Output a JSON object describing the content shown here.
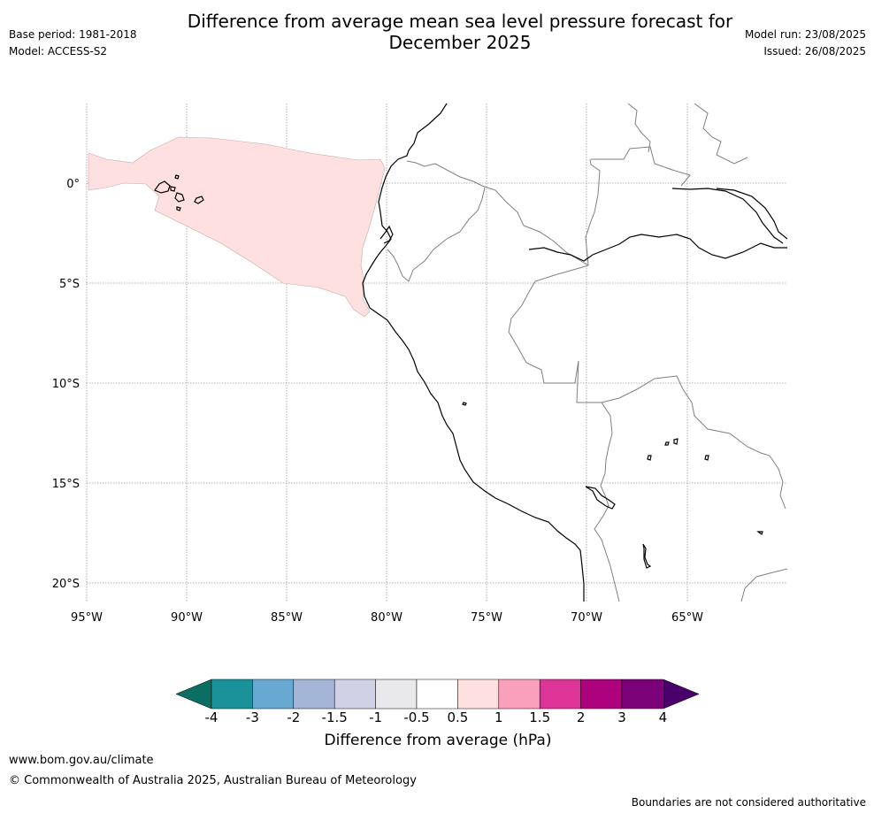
{
  "header": {
    "title_line1": "Difference from average mean sea level pressure forecast for",
    "title_line2": "December 2025",
    "base_period": "Base period: 1981-2018",
    "model": "Model: ACCESS-S2",
    "model_run": "Model run: 23/08/2025",
    "issued": "Issued: 26/08/2025"
  },
  "map": {
    "lat_labels": [
      "0°",
      "5°S",
      "10°S",
      "15°S",
      "20°S"
    ],
    "lon_labels": [
      "95°W",
      "90°W",
      "85°W",
      "80°W",
      "75°W",
      "70°W",
      "65°W"
    ],
    "anomaly_fill_color": "#fde0df",
    "coast_color": "#000000",
    "border_color": "#808080",
    "grid_color": "#9a9a9a"
  },
  "legend": {
    "colors": [
      "#0b6e63",
      "#1b9199",
      "#68a9d1",
      "#a4b6d8",
      "#d0d1e6",
      "#e9e9ec",
      "#ffffff",
      "#fde0df",
      "#f9a0bd",
      "#dd3497",
      "#ae017e",
      "#7a0177",
      "#49006a"
    ],
    "tick_labels": [
      "-4",
      "-3",
      "-2",
      "-1.5",
      "-1",
      "-0.5",
      "0.5",
      "1",
      "1.5",
      "2",
      "3",
      "4"
    ],
    "title": "Difference from average (hPa)"
  },
  "footer": {
    "url": "www.bom.gov.au/climate",
    "copyright": "© Commonwealth of Australia 2025, Australian Bureau of Meteorology",
    "disclaimer": "Boundaries are not considered authoritative"
  }
}
